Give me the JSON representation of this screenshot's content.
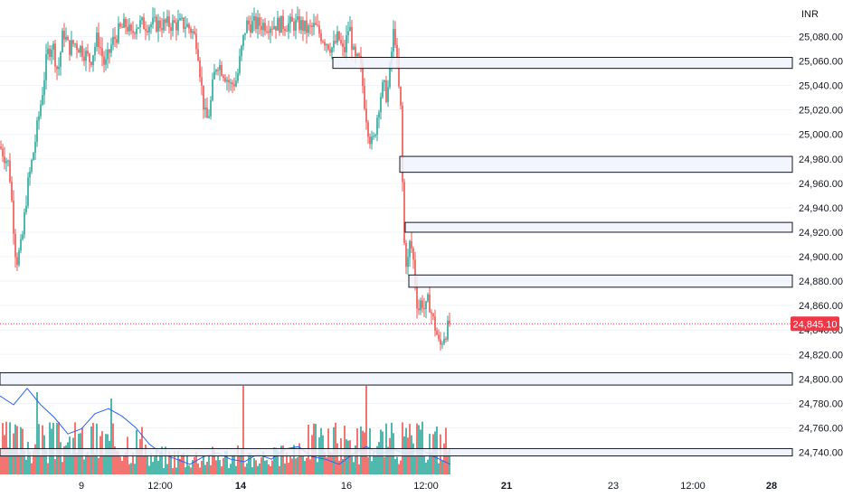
{
  "chart_data": {
    "type": "candlestick",
    "currency": "INR",
    "ylim": [
      24730,
      25095
    ],
    "y_ticks": [
      25080,
      25060,
      25040,
      25020,
      25000,
      24980,
      24960,
      24940,
      24920,
      24900,
      24880,
      24860,
      24840,
      24820,
      24800,
      24780,
      24760,
      24740
    ],
    "y_tick_labels": [
      "25,080.00",
      "25,060.00",
      "25,040.00",
      "25,020.00",
      "25,000.00",
      "24,980.00",
      "24,960.00",
      "24,940.00",
      "24,920.00",
      "24,900.00",
      "24,880.00",
      "24,860.00",
      "24,840.00",
      "24,820.00",
      "24,800.00",
      "24,780.00",
      "24,760.00",
      "24,740.00"
    ],
    "x_labels": [
      {
        "text": "9",
        "bold": false,
        "bar": 90
      },
      {
        "text": "12:00",
        "bold": false,
        "bar": 177
      },
      {
        "text": "14",
        "bold": true,
        "bar": 266
      },
      {
        "text": "16",
        "bold": false,
        "bar": 383
      },
      {
        "text": "12:00",
        "bold": false,
        "bar": 471
      },
      {
        "text": "21",
        "bold": true,
        "bar": 560
      },
      {
        "text": "23",
        "bold": false,
        "bar": 678
      },
      {
        "text": "12:00",
        "bold": false,
        "bar": 766
      },
      {
        "text": "28",
        "bold": true,
        "bar": 853
      }
    ],
    "last_price": 24845.1,
    "last_price_label": "24,845.10",
    "zones": [
      {
        "y1": 25063,
        "y2": 25054,
        "x_start_bar": 368
      },
      {
        "y1": 24982,
        "y2": 24969,
        "x_start_bar": 442
      },
      {
        "y1": 24928,
        "y2": 24920,
        "x_start_bar": 448
      },
      {
        "y1": 24885,
        "y2": 24875,
        "x_start_bar": 452
      },
      {
        "y1": 24805,
        "y2": 24795,
        "x_start_bar": 0
      },
      {
        "y1": 24743,
        "y2": 24737,
        "x_start_bar": 0
      }
    ],
    "colors": {
      "up": "#26a69a",
      "down": "#ef5350",
      "volume_ma": "#2962ff",
      "zone_fill": "#f0f3fa",
      "zone_border": "#131722",
      "grid": "#f0f3fa",
      "last_price": "#f23645"
    },
    "price_path": [
      [
        0,
        24990
      ],
      [
        10,
        24975
      ],
      [
        15,
        24925
      ],
      [
        18,
        24895
      ],
      [
        24,
        24910
      ],
      [
        30,
        24955
      ],
      [
        38,
        24990
      ],
      [
        46,
        25030
      ],
      [
        52,
        25065
      ],
      [
        58,
        25075
      ],
      [
        64,
        25050
      ],
      [
        70,
        25085
      ],
      [
        76,
        25070
      ],
      [
        82,
        25075
      ],
      [
        90,
        25070
      ],
      [
        100,
        25060
      ],
      [
        108,
        25080
      ],
      [
        116,
        25055
      ],
      [
        124,
        25075
      ],
      [
        132,
        25085
      ],
      [
        140,
        25090
      ],
      [
        145,
        25080
      ],
      [
        150,
        25090
      ],
      [
        205,
        25090
      ],
      [
        212,
        25085
      ],
      [
        218,
        25075
      ],
      [
        224,
        25030
      ],
      [
        228,
        25010
      ],
      [
        232,
        25020
      ],
      [
        236,
        25045
      ],
      [
        240,
        25060
      ],
      [
        248,
        25050
      ],
      [
        255,
        25040
      ],
      [
        262,
        25045
      ],
      [
        266,
        25065
      ],
      [
        272,
        25090
      ],
      [
        332,
        25090
      ],
      [
        340,
        25085
      ],
      [
        348,
        25088
      ],
      [
        356,
        25080
      ],
      [
        362,
        25075
      ],
      [
        368,
        25070
      ],
      [
        374,
        25080
      ],
      [
        380,
        25065
      ],
      [
        386,
        25090
      ],
      [
        392,
        25060
      ],
      [
        398,
        25060
      ],
      [
        404,
        25020
      ],
      [
        408,
        25000
      ],
      [
        412,
        24990
      ],
      [
        416,
        25010
      ],
      [
        420,
        25030
      ],
      [
        424,
        25040
      ],
      [
        428,
        25030
      ],
      [
        432,
        25060
      ],
      [
        436,
        25090
      ],
      [
        440,
        25045
      ],
      [
        443,
        25020
      ],
      [
        445,
        24960
      ],
      [
        447,
        24910
      ],
      [
        450,
        24890
      ],
      [
        453,
        24910
      ],
      [
        456,
        24905
      ],
      [
        459,
        24880
      ],
      [
        462,
        24855
      ],
      [
        466,
        24865
      ],
      [
        470,
        24855
      ],
      [
        474,
        24865
      ],
      [
        478,
        24850
      ],
      [
        482,
        24840
      ],
      [
        486,
        24825
      ],
      [
        490,
        24835
      ],
      [
        494,
        24840
      ],
      [
        498,
        24845
      ]
    ],
    "volume_ma_path": [
      [
        0,
        0.62
      ],
      [
        15,
        0.55
      ],
      [
        30,
        0.68
      ],
      [
        45,
        0.55
      ],
      [
        60,
        0.45
      ],
      [
        75,
        0.32
      ],
      [
        90,
        0.36
      ],
      [
        105,
        0.48
      ],
      [
        120,
        0.52
      ],
      [
        135,
        0.46
      ],
      [
        150,
        0.37
      ],
      [
        165,
        0.24
      ],
      [
        180,
        0.16
      ],
      [
        195,
        0.12
      ],
      [
        210,
        0.08
      ],
      [
        225,
        0.14
      ],
      [
        240,
        0.17
      ],
      [
        255,
        0.12
      ],
      [
        270,
        0.1
      ],
      [
        285,
        0.16
      ],
      [
        300,
        0.12
      ],
      [
        315,
        0.2
      ],
      [
        330,
        0.22
      ],
      [
        345,
        0.14
      ],
      [
        360,
        0.12
      ],
      [
        375,
        0.08
      ],
      [
        390,
        0.16
      ],
      [
        405,
        0.22
      ],
      [
        420,
        0.16
      ],
      [
        435,
        0.2
      ],
      [
        450,
        0.16
      ],
      [
        465,
        0.2
      ],
      [
        480,
        0.14
      ],
      [
        498,
        0.08
      ]
    ],
    "volume_spikes": [
      {
        "bar": 34,
        "v": 0.85
      },
      {
        "bar": 98,
        "v": 0.9
      },
      {
        "bar": 41,
        "v": 0.65
      },
      {
        "bar": 123,
        "v": 0.6
      },
      {
        "bar": 140,
        "v": 0.55
      },
      {
        "bar": 269,
        "v": 0.7
      },
      {
        "bar": 328,
        "v": 0.6
      },
      {
        "bar": 405,
        "v": 0.7
      },
      {
        "bar": 446,
        "v": 0.85
      },
      {
        "bar": 498,
        "v": 0.45
      },
      {
        "bar": 10,
        "v": 0.45
      },
      {
        "bar": 60,
        "v": 0.5
      }
    ]
  }
}
